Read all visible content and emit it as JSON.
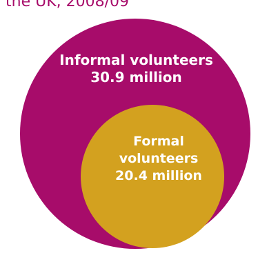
{
  "header": {
    "title_fragment": "the UK, 2008/09"
  },
  "diagram": {
    "outer": {
      "label_line_1": "Informal volunteers",
      "label_line_2": "30.9 million",
      "color": "#a70c6a"
    },
    "inner": {
      "label_line_1": "Formal",
      "label_line_2": "volunteers",
      "label_line_3": "20.4 million",
      "color": "#d3a11f"
    }
  }
}
